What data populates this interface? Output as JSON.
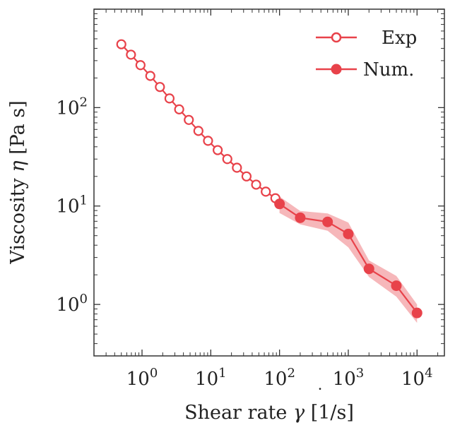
{
  "chart_data": {
    "type": "line",
    "xlabel_main": "Shear rate ",
    "xlabel_symbol": "γ",
    "xlabel_unit": " [1/s]",
    "ylabel_main": "Viscosity ",
    "ylabel_symbol": "η",
    "ylabel_unit": " [Pa s]",
    "x_scale": "log",
    "y_scale": "log",
    "xlim": [
      0.2,
      25000
    ],
    "ylim": [
      0.3,
      1000
    ],
    "x_ticks": [
      {
        "value": 1,
        "base": "10",
        "exp": "0"
      },
      {
        "value": 10,
        "base": "10",
        "exp": "1"
      },
      {
        "value": 100,
        "base": "10",
        "exp": "2"
      },
      {
        "value": 1000,
        "base": "10",
        "exp": "3"
      },
      {
        "value": 10000,
        "base": "10",
        "exp": "4"
      }
    ],
    "y_ticks": [
      {
        "value": 1,
        "base": "10",
        "exp": "0"
      },
      {
        "value": 10,
        "base": "10",
        "exp": "1"
      },
      {
        "value": 100,
        "base": "10",
        "exp": "2"
      }
    ],
    "grid": false,
    "legend_position": "top-right",
    "series": [
      {
        "name": "Exp",
        "color": "#e8424a",
        "marker": "open-circle",
        "x": [
          0.5,
          0.69,
          0.95,
          1.32,
          1.82,
          2.51,
          3.47,
          4.79,
          6.61,
          9.12,
          12.6,
          17.4,
          24.0,
          33.1,
          45.7,
          63.1,
          87.1
        ],
        "y": [
          440,
          345,
          270,
          210,
          162,
          124,
          96,
          75,
          58,
          46,
          37,
          30,
          24.5,
          20,
          16.5,
          14,
          12
        ]
      },
      {
        "name": "Num.",
        "color": "#e8424a",
        "marker": "filled-circle",
        "band": true,
        "x": [
          100,
          200,
          500,
          1000,
          2000,
          5000,
          10000
        ],
        "y": [
          10.5,
          7.6,
          6.9,
          5.2,
          2.3,
          1.55,
          0.82
        ],
        "y_low": [
          8.5,
          6.5,
          5.6,
          3.8,
          1.9,
          1.2,
          0.65
        ],
        "y_high": [
          12.5,
          8.9,
          8.4,
          6.8,
          2.8,
          1.95,
          1.0
        ]
      }
    ]
  }
}
